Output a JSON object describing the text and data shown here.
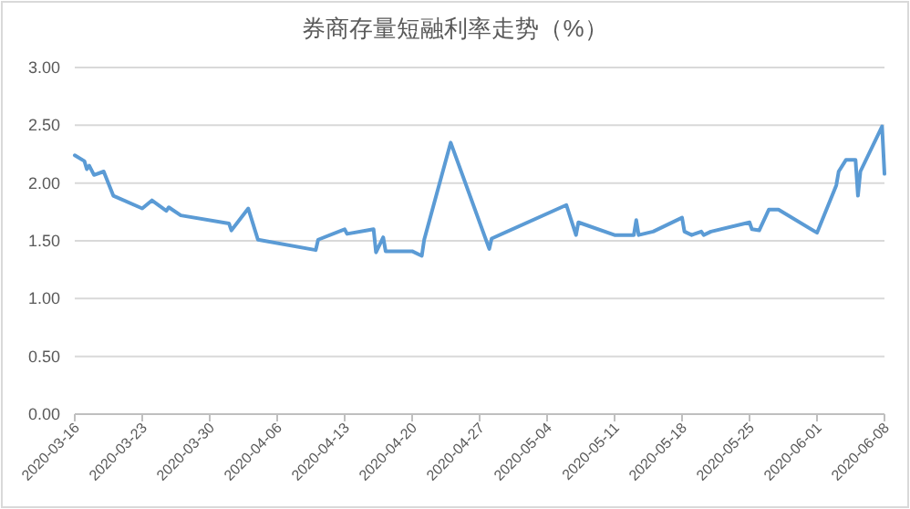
{
  "chart_data": {
    "type": "line",
    "title": "券商存量短融利率走势（%）",
    "x": [
      "2020-03-16T00:00",
      "2020-03-17T00:00",
      "2020-03-17T06:00",
      "2020-03-17T12:00",
      "2020-03-18T00:00",
      "2020-03-19T00:00",
      "2020-03-20T00:00",
      "2020-03-23T00:00",
      "2020-03-24T00:00",
      "2020-03-25T12:00",
      "2020-03-25T18:00",
      "2020-03-27T00:00",
      "2020-04-01T00:00",
      "2020-04-01T06:00",
      "2020-04-03T00:00",
      "2020-04-04T00:00",
      "2020-04-10T00:00",
      "2020-04-10T06:00",
      "2020-04-13T00:00",
      "2020-04-13T06:00",
      "2020-04-16T00:00",
      "2020-04-16T06:00",
      "2020-04-17T00:00",
      "2020-04-17T06:00",
      "2020-04-20T00:00",
      "2020-04-21T00:00",
      "2020-04-21T06:00",
      "2020-04-24T00:00",
      "2020-04-28T00:00",
      "2020-04-28T06:00",
      "2020-05-06T00:00",
      "2020-05-07T00:00",
      "2020-05-07T06:00",
      "2020-05-11T00:00",
      "2020-05-13T00:00",
      "2020-05-13T06:00",
      "2020-05-13T12:00",
      "2020-05-15T00:00",
      "2020-05-18T00:00",
      "2020-05-18T06:00",
      "2020-05-19T00:00",
      "2020-05-20T00:00",
      "2020-05-20T06:00",
      "2020-05-21T00:00",
      "2020-05-25T00:00",
      "2020-05-25T06:00",
      "2020-05-26T00:00",
      "2020-05-27T00:00",
      "2020-05-28T00:00",
      "2020-06-01T00:00",
      "2020-06-03T00:00",
      "2020-06-03T06:00",
      "2020-06-04T00:00",
      "2020-06-05T00:00",
      "2020-06-05T06:00",
      "2020-06-05T12:00",
      "2020-06-07T18:00",
      "2020-06-08T00:00"
    ],
    "values": [
      2.24,
      2.19,
      2.12,
      2.15,
      2.07,
      2.1,
      1.89,
      1.78,
      1.85,
      1.76,
      1.79,
      1.72,
      1.65,
      1.59,
      1.78,
      1.51,
      1.42,
      1.51,
      1.6,
      1.56,
      1.6,
      1.4,
      1.53,
      1.41,
      1.41,
      1.37,
      1.51,
      2.35,
      1.43,
      1.52,
      1.81,
      1.55,
      1.66,
      1.55,
      1.55,
      1.68,
      1.55,
      1.58,
      1.7,
      1.58,
      1.55,
      1.58,
      1.55,
      1.58,
      1.66,
      1.6,
      1.59,
      1.77,
      1.77,
      1.57,
      1.98,
      2.1,
      2.2,
      2.2,
      1.89,
      2.1,
      2.49,
      2.08
    ],
    "color": "#5b9bd5",
    "xlim": [
      "2020-03-16",
      "2020-06-08"
    ],
    "xticks": [
      "2020-03-16",
      "2020-03-23",
      "2020-03-30",
      "2020-04-06",
      "2020-04-13",
      "2020-04-20",
      "2020-04-27",
      "2020-05-04",
      "2020-05-11",
      "2020-05-18",
      "2020-05-25",
      "2020-06-01",
      "2020-06-08"
    ],
    "ylim": [
      0,
      3
    ],
    "yticks": [
      {
        "value": 0,
        "label": "0.00"
      },
      {
        "value": 0.5,
        "label": "0.50"
      },
      {
        "value": 1,
        "label": "1.00"
      },
      {
        "value": 1.5,
        "label": "1.50"
      },
      {
        "value": 2,
        "label": "2.00"
      },
      {
        "value": 2.5,
        "label": "2.50"
      },
      {
        "value": 3,
        "label": "3.00"
      }
    ],
    "grid": "y",
    "marker": "none",
    "line_style": "solid"
  }
}
